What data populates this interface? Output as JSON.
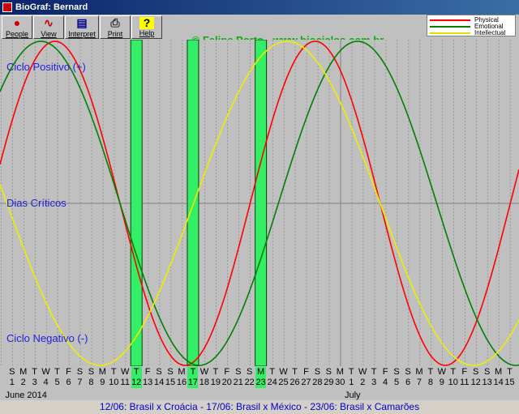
{
  "window": {
    "title": "BioGraf: Bernard"
  },
  "toolbar": {
    "buttons": [
      {
        "label": "People",
        "icon": "people-icon"
      },
      {
        "label": "View",
        "icon": "view-icon"
      },
      {
        "label": "Interpret",
        "icon": "interpret-icon"
      },
      {
        "label": "Print",
        "icon": "print-icon"
      },
      {
        "label": "Help",
        "icon": "help-icon"
      }
    ]
  },
  "copyright": "© Felipe Porto - www.biоciclos.com.br",
  "legend": {
    "items": [
      {
        "name": "Physical",
        "color": "#ff0000"
      },
      {
        "name": "Emotional",
        "color": "#008000"
      },
      {
        "name": "Intellectual",
        "color": "#ffff00"
      }
    ]
  },
  "axis_labels": {
    "positive": "Ciclo Positivo (+)",
    "critical": "Dias Críticos",
    "negative": "Ciclo Negativo (-)"
  },
  "chart_data": {
    "type": "line",
    "x_days": [
      "2014-06-01",
      "2014-06-02",
      "2014-06-03",
      "2014-06-04",
      "2014-06-05",
      "2014-06-06",
      "2014-06-07",
      "2014-06-08",
      "2014-06-09",
      "2014-06-10",
      "2014-06-11",
      "2014-06-12",
      "2014-06-13",
      "2014-06-14",
      "2014-06-15",
      "2014-06-16",
      "2014-06-17",
      "2014-06-18",
      "2014-06-19",
      "2014-06-20",
      "2014-06-21",
      "2014-06-22",
      "2014-06-23",
      "2014-06-24",
      "2014-06-25",
      "2014-06-26",
      "2014-06-27",
      "2014-06-28",
      "2014-06-29",
      "2014-06-30",
      "2014-07-01",
      "2014-07-02",
      "2014-07-03",
      "2014-07-04",
      "2014-07-05",
      "2014-07-06",
      "2014-07-07",
      "2014-07-08",
      "2014-07-09",
      "2014-07-10",
      "2014-07-11",
      "2014-07-12",
      "2014-07-13",
      "2014-07-14",
      "2014-07-15"
    ],
    "weekday_letters": [
      "S",
      "M",
      "T",
      "W",
      "T",
      "F",
      "S",
      "S",
      "M",
      "T",
      "W",
      "T",
      "F",
      "S",
      "S",
      "M",
      "T",
      "W",
      "T",
      "F",
      "S",
      "S",
      "M",
      "T",
      "W",
      "T",
      "F",
      "S",
      "S",
      "M",
      "T",
      "W",
      "T",
      "F",
      "S",
      "S",
      "M",
      "T",
      "W",
      "T",
      "F",
      "S",
      "S",
      "M",
      "T"
    ],
    "day_numbers": [
      "1",
      "2",
      "3",
      "4",
      "5",
      "6",
      "7",
      "8",
      "9",
      "10",
      "11",
      "12",
      "13",
      "14",
      "15",
      "16",
      "17",
      "18",
      "19",
      "20",
      "21",
      "22",
      "23",
      "24",
      "25",
      "26",
      "27",
      "28",
      "29",
      "30",
      "1",
      "2",
      "3",
      "4",
      "5",
      "6",
      "7",
      "8",
      "9",
      "10",
      "11",
      "12",
      "13",
      "14",
      "15"
    ],
    "months": [
      {
        "label": "June 2014",
        "start_index": 0
      },
      {
        "label": "July",
        "start_index": 30
      }
    ],
    "ylim": [
      -1,
      1
    ],
    "grid": true,
    "series": [
      {
        "name": "Physical",
        "color": "#ff0000",
        "period": 23,
        "peak_day": 5.75
      },
      {
        "name": "Emotional",
        "color": "#008000",
        "period": 28,
        "peak_day": 4.5
      },
      {
        "name": "Intellectual",
        "color": "#ffff00",
        "period": 33,
        "peak_day": 26.25
      }
    ],
    "highlighted_days": [
      12,
      17,
      23
    ],
    "highlight_colors": {
      "fill": "#33ee66",
      "border": "#004400"
    }
  },
  "footer": "12/06: Brasil x Croácia - 17/06: Brasil x México - 23/06: Brasil x Camarões"
}
